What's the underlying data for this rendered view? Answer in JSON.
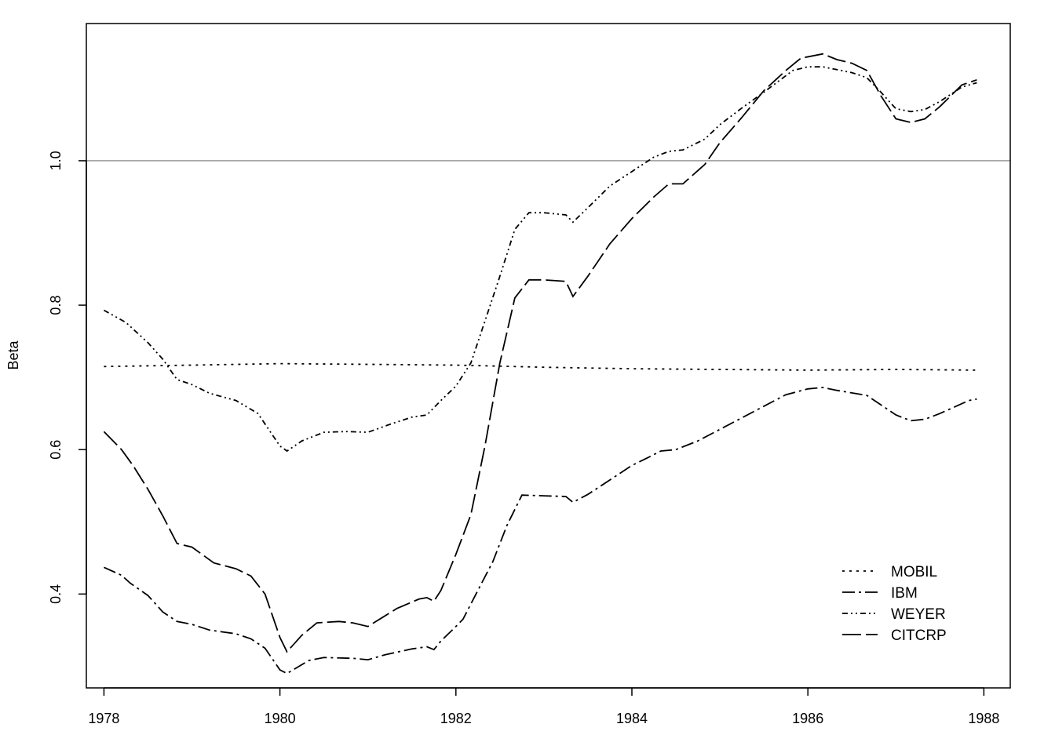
{
  "chart_data": {
    "type": "line",
    "title": "",
    "xlabel": "",
    "ylabel": "Beta",
    "xlim": [
      1977.8,
      1988.3
    ],
    "ylim": [
      0.27,
      1.19
    ],
    "x_ticks": [
      "1978",
      "1980",
      "1982",
      "1984",
      "1986",
      "1988"
    ],
    "y_ticks": [
      "0.4",
      "0.6",
      "0.8",
      "1.0"
    ],
    "reference_line": {
      "y": 1.0,
      "color": "#9a9a9a"
    },
    "legend_position": "bottom-right",
    "series": [
      {
        "name": "MOBIL",
        "dash": "3,6",
        "points": [
          [
            1978.0,
            0.715
          ],
          [
            1979.0,
            0.717
          ],
          [
            1980.0,
            0.719
          ],
          [
            1981.0,
            0.718
          ],
          [
            1982.0,
            0.717
          ],
          [
            1983.0,
            0.714
          ],
          [
            1984.0,
            0.712
          ],
          [
            1985.0,
            0.711
          ],
          [
            1986.0,
            0.71
          ],
          [
            1987.0,
            0.711
          ],
          [
            1987.92,
            0.71
          ]
        ]
      },
      {
        "name": "IBM",
        "dash": "16,5,3,5",
        "points": [
          [
            1978.0,
            0.437
          ],
          [
            1978.2,
            0.426
          ],
          [
            1978.3,
            0.415
          ],
          [
            1978.5,
            0.398
          ],
          [
            1978.67,
            0.375
          ],
          [
            1978.83,
            0.362
          ],
          [
            1979.0,
            0.358
          ],
          [
            1979.2,
            0.35
          ],
          [
            1979.5,
            0.345
          ],
          [
            1979.67,
            0.338
          ],
          [
            1979.83,
            0.325
          ],
          [
            1980.0,
            0.295
          ],
          [
            1980.08,
            0.29
          ],
          [
            1980.33,
            0.308
          ],
          [
            1980.5,
            0.312
          ],
          [
            1980.83,
            0.311
          ],
          [
            1981.0,
            0.309
          ],
          [
            1981.2,
            0.316
          ],
          [
            1981.5,
            0.324
          ],
          [
            1981.67,
            0.327
          ],
          [
            1981.75,
            0.323
          ],
          [
            1981.83,
            0.335
          ],
          [
            1982.0,
            0.355
          ],
          [
            1982.08,
            0.365
          ],
          [
            1982.25,
            0.405
          ],
          [
            1982.42,
            0.445
          ],
          [
            1982.58,
            0.495
          ],
          [
            1982.75,
            0.537
          ],
          [
            1983.0,
            0.536
          ],
          [
            1983.25,
            0.535
          ],
          [
            1983.33,
            0.527
          ],
          [
            1983.5,
            0.538
          ],
          [
            1983.75,
            0.558
          ],
          [
            1984.0,
            0.578
          ],
          [
            1984.2,
            0.59
          ],
          [
            1984.33,
            0.598
          ],
          [
            1984.5,
            0.6
          ],
          [
            1984.75,
            0.612
          ],
          [
            1985.0,
            0.628
          ],
          [
            1985.25,
            0.644
          ],
          [
            1985.5,
            0.66
          ],
          [
            1985.75,
            0.676
          ],
          [
            1986.0,
            0.684
          ],
          [
            1986.17,
            0.686
          ],
          [
            1986.33,
            0.682
          ],
          [
            1986.67,
            0.675
          ],
          [
            1986.83,
            0.662
          ],
          [
            1987.0,
            0.648
          ],
          [
            1987.17,
            0.64
          ],
          [
            1987.33,
            0.642
          ],
          [
            1987.5,
            0.65
          ],
          [
            1987.83,
            0.668
          ],
          [
            1987.92,
            0.67
          ]
        ]
      },
      {
        "name": "WEYER",
        "dash": "7,4,2,4,2,4",
        "points": [
          [
            1978.0,
            0.793
          ],
          [
            1978.25,
            0.776
          ],
          [
            1978.5,
            0.748
          ],
          [
            1978.67,
            0.725
          ],
          [
            1978.83,
            0.697
          ],
          [
            1979.0,
            0.69
          ],
          [
            1979.2,
            0.678
          ],
          [
            1979.5,
            0.668
          ],
          [
            1979.75,
            0.65
          ],
          [
            1980.0,
            0.605
          ],
          [
            1980.08,
            0.598
          ],
          [
            1980.25,
            0.612
          ],
          [
            1980.5,
            0.624
          ],
          [
            1980.75,
            0.625
          ],
          [
            1981.0,
            0.624
          ],
          [
            1981.25,
            0.635
          ],
          [
            1981.5,
            0.645
          ],
          [
            1981.67,
            0.648
          ],
          [
            1981.83,
            0.668
          ],
          [
            1982.0,
            0.688
          ],
          [
            1982.17,
            0.72
          ],
          [
            1982.33,
            0.778
          ],
          [
            1982.5,
            0.84
          ],
          [
            1982.67,
            0.905
          ],
          [
            1982.83,
            0.928
          ],
          [
            1983.0,
            0.928
          ],
          [
            1983.25,
            0.925
          ],
          [
            1983.33,
            0.915
          ],
          [
            1983.5,
            0.935
          ],
          [
            1983.75,
            0.965
          ],
          [
            1984.0,
            0.985
          ],
          [
            1984.25,
            1.005
          ],
          [
            1984.42,
            1.013
          ],
          [
            1984.58,
            1.015
          ],
          [
            1984.83,
            1.03
          ],
          [
            1985.0,
            1.05
          ],
          [
            1985.25,
            1.073
          ],
          [
            1985.5,
            1.095
          ],
          [
            1985.83,
            1.125
          ],
          [
            1986.0,
            1.13
          ],
          [
            1986.17,
            1.13
          ],
          [
            1986.5,
            1.122
          ],
          [
            1986.67,
            1.115
          ],
          [
            1986.83,
            1.095
          ],
          [
            1987.0,
            1.072
          ],
          [
            1987.17,
            1.068
          ],
          [
            1987.33,
            1.071
          ],
          [
            1987.5,
            1.082
          ],
          [
            1987.75,
            1.102
          ],
          [
            1987.92,
            1.108
          ]
        ]
      },
      {
        "name": "CITCRP",
        "dash": "24,6",
        "points": [
          [
            1978.0,
            0.625
          ],
          [
            1978.2,
            0.6
          ],
          [
            1978.33,
            0.578
          ],
          [
            1978.5,
            0.545
          ],
          [
            1978.67,
            0.508
          ],
          [
            1978.83,
            0.47
          ],
          [
            1979.0,
            0.465
          ],
          [
            1979.25,
            0.443
          ],
          [
            1979.5,
            0.435
          ],
          [
            1979.67,
            0.425
          ],
          [
            1979.83,
            0.4
          ],
          [
            1980.0,
            0.34
          ],
          [
            1980.08,
            0.32
          ],
          [
            1980.25,
            0.343
          ],
          [
            1980.42,
            0.36
          ],
          [
            1980.67,
            0.362
          ],
          [
            1980.83,
            0.36
          ],
          [
            1981.0,
            0.355
          ],
          [
            1981.17,
            0.368
          ],
          [
            1981.33,
            0.38
          ],
          [
            1981.58,
            0.393
          ],
          [
            1981.67,
            0.395
          ],
          [
            1981.75,
            0.39
          ],
          [
            1981.83,
            0.405
          ],
          [
            1982.0,
            0.455
          ],
          [
            1982.17,
            0.51
          ],
          [
            1982.33,
            0.605
          ],
          [
            1982.5,
            0.72
          ],
          [
            1982.67,
            0.81
          ],
          [
            1982.83,
            0.835
          ],
          [
            1983.0,
            0.835
          ],
          [
            1983.25,
            0.833
          ],
          [
            1983.33,
            0.812
          ],
          [
            1983.5,
            0.84
          ],
          [
            1983.75,
            0.885
          ],
          [
            1984.0,
            0.92
          ],
          [
            1984.25,
            0.95
          ],
          [
            1984.42,
            0.968
          ],
          [
            1984.58,
            0.968
          ],
          [
            1984.83,
            0.995
          ],
          [
            1985.0,
            1.025
          ],
          [
            1985.25,
            1.06
          ],
          [
            1985.5,
            1.097
          ],
          [
            1985.75,
            1.125
          ],
          [
            1985.92,
            1.142
          ],
          [
            1986.17,
            1.148
          ],
          [
            1986.33,
            1.14
          ],
          [
            1986.5,
            1.135
          ],
          [
            1986.67,
            1.125
          ],
          [
            1986.83,
            1.09
          ],
          [
            1987.0,
            1.058
          ],
          [
            1987.17,
            1.053
          ],
          [
            1987.33,
            1.058
          ],
          [
            1987.5,
            1.075
          ],
          [
            1987.75,
            1.105
          ],
          [
            1987.92,
            1.112
          ]
        ]
      }
    ]
  }
}
